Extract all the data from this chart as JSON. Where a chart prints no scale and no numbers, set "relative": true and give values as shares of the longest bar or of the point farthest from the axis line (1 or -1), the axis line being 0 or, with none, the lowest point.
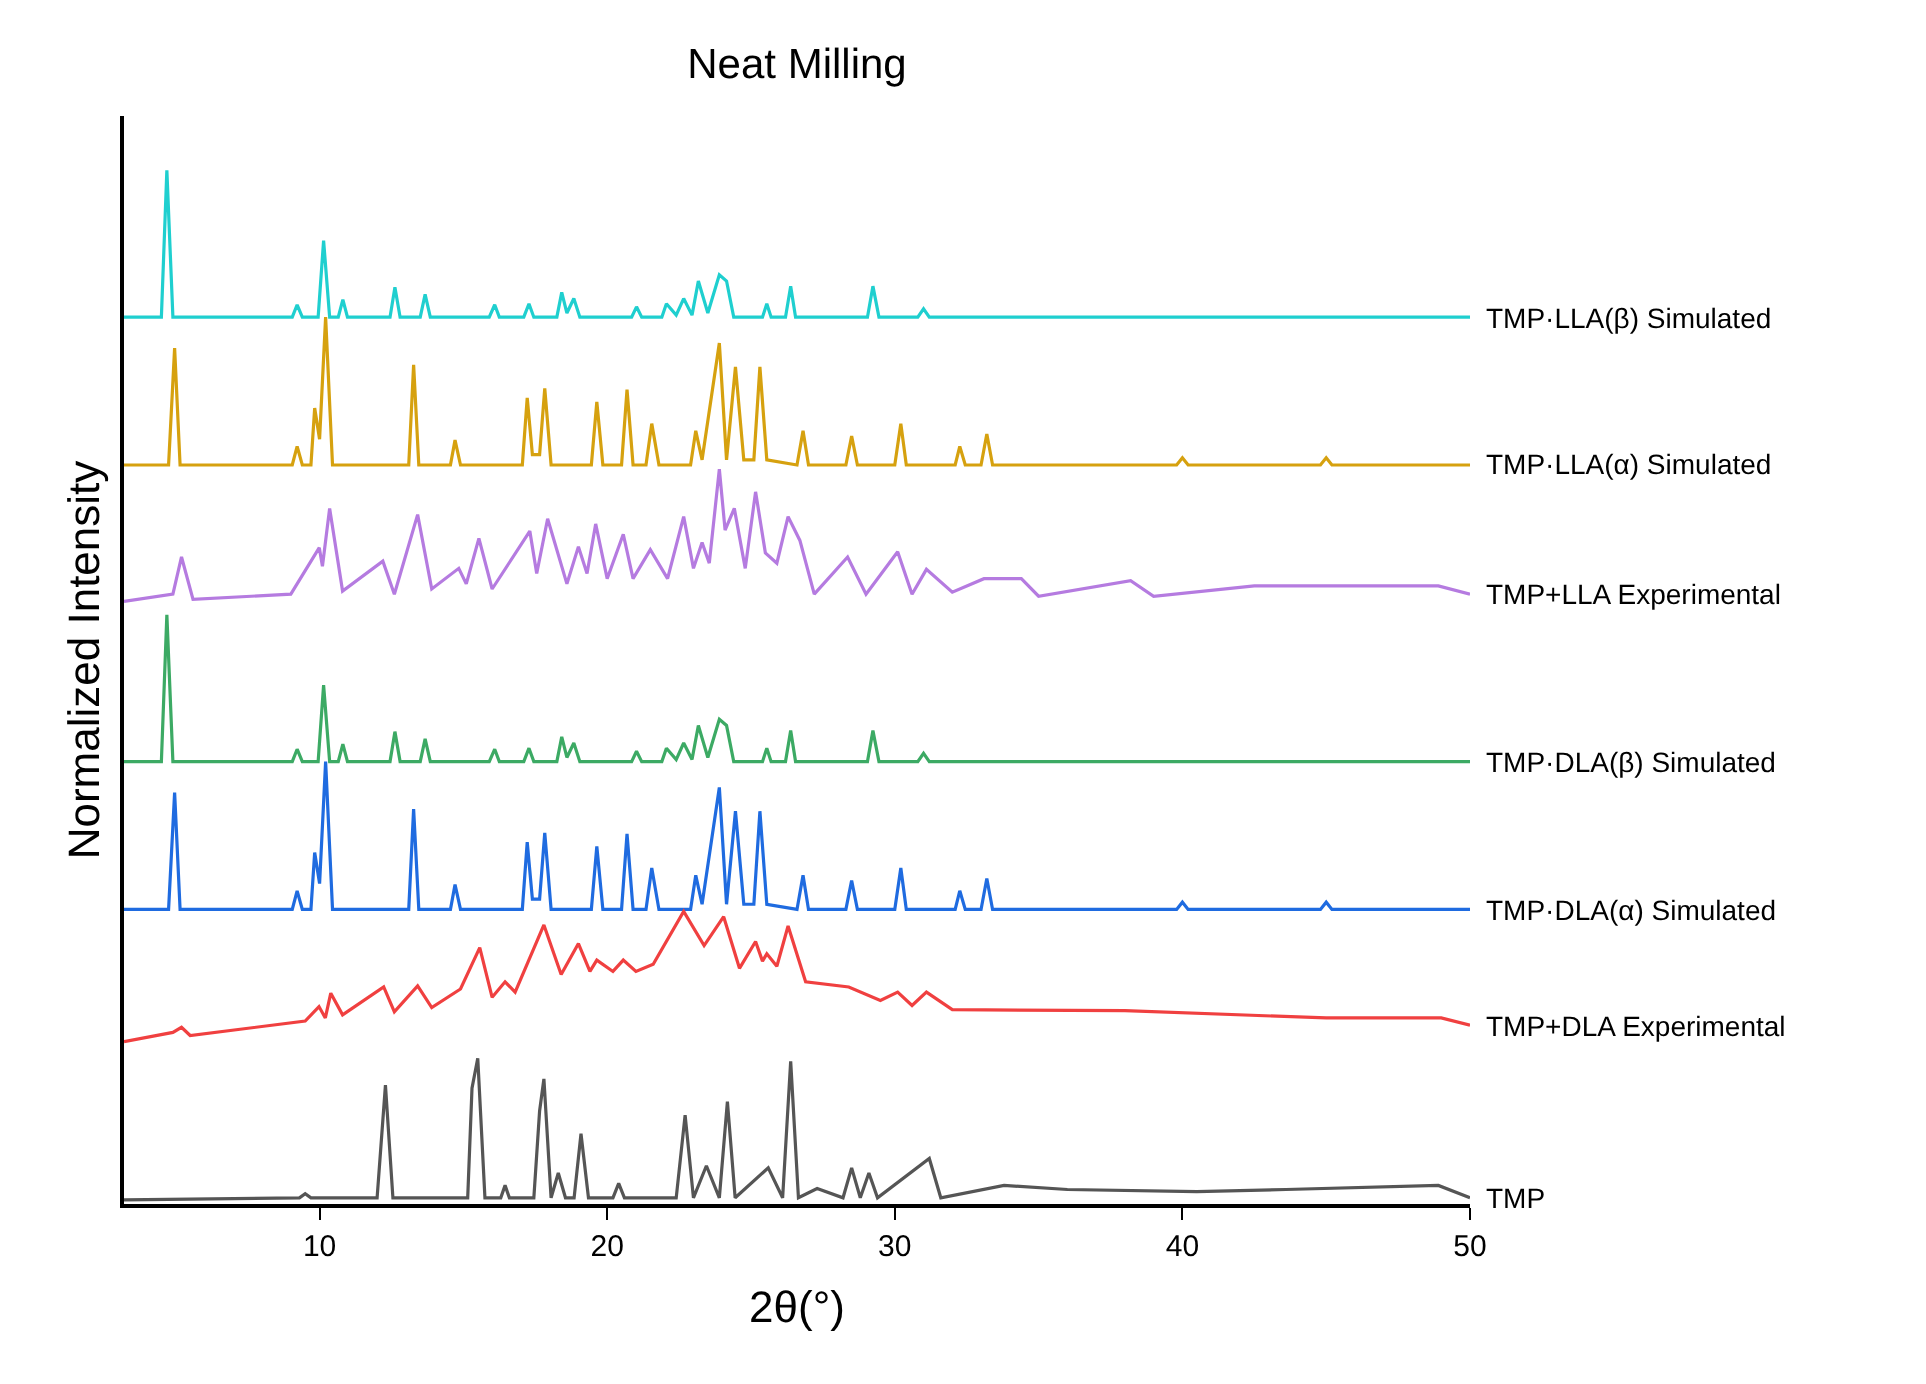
{
  "chart_data": {
    "type": "line",
    "title": "Neat Milling",
    "xlabel": "2θ(°)",
    "ylabel": "Normalized Intensity",
    "relative": true,
    "xlim": [
      3.2,
      50
    ],
    "xticks": [
      10,
      20,
      30,
      40,
      50
    ],
    "legend": false,
    "series": [
      {
        "name": "TMP·LLA(β) Simulated",
        "color": "#1fcfcf",
        "x": [
          3.2,
          4.5,
          4.69,
          4.9,
          9.05,
          9.22,
          9.4,
          9.95,
          10.14,
          10.35,
          10.65,
          10.81,
          10.97,
          12.45,
          12.62,
          12.8,
          13.5,
          13.67,
          13.85,
          15.9,
          16.09,
          16.25,
          17.1,
          17.28,
          17.45,
          18.25,
          18.42,
          18.6,
          18.84,
          19.05,
          20.85,
          21.02,
          21.2,
          21.9,
          22.06,
          22.4,
          22.66,
          22.95,
          23.17,
          23.5,
          23.9,
          24.15,
          24.4,
          25.4,
          25.55,
          25.7,
          26.2,
          26.38,
          26.55,
          29.05,
          29.24,
          29.45,
          30.8,
          31.0,
          31.2,
          50
        ],
        "values": [
          0.858,
          0.858,
          1.0,
          0.858,
          0.858,
          0.87,
          0.858,
          0.858,
          0.932,
          0.858,
          0.858,
          0.875,
          0.858,
          0.858,
          0.887,
          0.858,
          0.858,
          0.88,
          0.858,
          0.858,
          0.87,
          0.858,
          0.858,
          0.871,
          0.858,
          0.858,
          0.882,
          0.862,
          0.876,
          0.858,
          0.858,
          0.868,
          0.858,
          0.858,
          0.871,
          0.86,
          0.876,
          0.86,
          0.893,
          0.862,
          0.899,
          0.893,
          0.858,
          0.858,
          0.871,
          0.858,
          0.858,
          0.888,
          0.858,
          0.858,
          0.888,
          0.858,
          0.858,
          0.866,
          0.858,
          0.858
        ]
      },
      {
        "name": "TMP·LLA(α) Simulated",
        "color": "#d6a10f",
        "x": [
          3.2,
          4.75,
          4.96,
          5.15,
          9.05,
          9.22,
          9.4,
          9.7,
          9.83,
          10.0,
          10.21,
          10.45,
          13.1,
          13.27,
          13.45,
          14.55,
          14.71,
          14.9,
          17.05,
          17.22,
          17.4,
          17.65,
          17.83,
          18.05,
          19.45,
          19.64,
          19.85,
          20.5,
          20.69,
          20.9,
          21.35,
          21.55,
          21.8,
          22.9,
          23.08,
          23.3,
          23.9,
          24.15,
          24.46,
          24.75,
          25.1,
          25.31,
          25.55,
          26.6,
          26.81,
          27.0,
          28.3,
          28.5,
          28.7,
          30.0,
          30.21,
          30.4,
          32.1,
          32.26,
          32.45,
          33.0,
          33.2,
          33.4,
          39.8,
          40.0,
          40.2,
          44.8,
          45.0,
          45.2,
          50
        ],
        "values": [
          0.715,
          0.715,
          0.828,
          0.715,
          0.715,
          0.733,
          0.715,
          0.715,
          0.77,
          0.74,
          0.858,
          0.715,
          0.715,
          0.812,
          0.715,
          0.715,
          0.739,
          0.715,
          0.715,
          0.78,
          0.725,
          0.725,
          0.789,
          0.715,
          0.715,
          0.776,
          0.715,
          0.715,
          0.788,
          0.715,
          0.715,
          0.755,
          0.715,
          0.715,
          0.748,
          0.72,
          0.833,
          0.72,
          0.81,
          0.72,
          0.72,
          0.81,
          0.72,
          0.715,
          0.748,
          0.715,
          0.715,
          0.743,
          0.715,
          0.715,
          0.755,
          0.715,
          0.715,
          0.733,
          0.715,
          0.715,
          0.745,
          0.715,
          0.715,
          0.722,
          0.715,
          0.715,
          0.722,
          0.715,
          0.715
        ]
      },
      {
        "name": "TMP+LLA Experimental",
        "color": "#b57be0",
        "x": [
          3.2,
          4.9,
          5.2,
          5.6,
          9.0,
          9.99,
          10.1,
          10.35,
          10.8,
          12.2,
          12.6,
          13.41,
          13.9,
          14.84,
          15.1,
          15.54,
          16.0,
          17.31,
          17.55,
          17.93,
          18.6,
          19.0,
          19.3,
          19.6,
          20.0,
          20.56,
          20.9,
          21.5,
          22.1,
          22.66,
          23.0,
          23.3,
          23.55,
          23.9,
          24.1,
          24.42,
          24.8,
          25.16,
          25.5,
          25.9,
          26.29,
          26.7,
          27.2,
          28.36,
          29.0,
          30.1,
          30.6,
          31.1,
          32.0,
          33.1,
          34.4,
          35.0,
          38.2,
          39.0,
          42.5,
          48.9,
          50
        ],
        "values": [
          0.583,
          0.59,
          0.626,
          0.585,
          0.59,
          0.635,
          0.617,
          0.673,
          0.593,
          0.622,
          0.59,
          0.667,
          0.595,
          0.615,
          0.6,
          0.644,
          0.595,
          0.651,
          0.61,
          0.663,
          0.6,
          0.636,
          0.61,
          0.658,
          0.605,
          0.648,
          0.605,
          0.633,
          0.605,
          0.665,
          0.615,
          0.64,
          0.62,
          0.711,
          0.652,
          0.673,
          0.615,
          0.689,
          0.63,
          0.62,
          0.665,
          0.642,
          0.59,
          0.626,
          0.59,
          0.631,
          0.59,
          0.614,
          0.592,
          0.605,
          0.605,
          0.588,
          0.603,
          0.588,
          0.598,
          0.598,
          0.59
        ]
      },
      {
        "name": "TMP·DLA(β) Simulated",
        "color": "#3caa64",
        "x": [
          3.2,
          4.5,
          4.69,
          4.9,
          9.05,
          9.22,
          9.4,
          9.95,
          10.14,
          10.35,
          10.65,
          10.81,
          10.97,
          12.45,
          12.62,
          12.8,
          13.5,
          13.67,
          13.85,
          15.9,
          16.09,
          16.25,
          17.1,
          17.28,
          17.45,
          18.25,
          18.42,
          18.6,
          18.84,
          19.05,
          20.85,
          21.02,
          21.2,
          21.9,
          22.06,
          22.4,
          22.66,
          22.95,
          23.17,
          23.5,
          23.9,
          24.15,
          24.4,
          25.4,
          25.55,
          25.7,
          26.2,
          26.38,
          26.55,
          29.05,
          29.24,
          29.45,
          30.8,
          31.0,
          31.2,
          50
        ],
        "values": [
          0.428,
          0.428,
          0.57,
          0.428,
          0.428,
          0.44,
          0.428,
          0.428,
          0.502,
          0.428,
          0.428,
          0.445,
          0.428,
          0.428,
          0.457,
          0.428,
          0.428,
          0.45,
          0.428,
          0.428,
          0.44,
          0.428,
          0.428,
          0.441,
          0.428,
          0.428,
          0.452,
          0.432,
          0.446,
          0.428,
          0.428,
          0.438,
          0.428,
          0.428,
          0.441,
          0.43,
          0.446,
          0.43,
          0.463,
          0.432,
          0.469,
          0.463,
          0.428,
          0.428,
          0.441,
          0.428,
          0.428,
          0.458,
          0.428,
          0.428,
          0.458,
          0.428,
          0.428,
          0.436,
          0.428,
          0.428
        ]
      },
      {
        "name": "TMP·DLA(α) Simulated",
        "color": "#1f6be0",
        "x": [
          3.2,
          4.75,
          4.96,
          5.15,
          9.05,
          9.22,
          9.4,
          9.7,
          9.83,
          10.0,
          10.21,
          10.45,
          13.1,
          13.27,
          13.45,
          14.55,
          14.71,
          14.9,
          17.05,
          17.22,
          17.4,
          17.65,
          17.83,
          18.05,
          19.45,
          19.64,
          19.85,
          20.5,
          20.69,
          20.9,
          21.35,
          21.55,
          21.8,
          22.9,
          23.08,
          23.3,
          23.9,
          24.15,
          24.46,
          24.75,
          25.1,
          25.31,
          25.55,
          26.6,
          26.81,
          27.0,
          28.3,
          28.5,
          28.7,
          30.0,
          30.21,
          30.4,
          32.1,
          32.26,
          32.45,
          33.0,
          33.2,
          33.4,
          39.8,
          40.0,
          40.2,
          44.8,
          45.0,
          45.2,
          50
        ],
        "values": [
          0.285,
          0.285,
          0.398,
          0.285,
          0.285,
          0.303,
          0.285,
          0.285,
          0.34,
          0.31,
          0.428,
          0.285,
          0.285,
          0.382,
          0.285,
          0.285,
          0.309,
          0.285,
          0.285,
          0.35,
          0.295,
          0.295,
          0.359,
          0.285,
          0.285,
          0.346,
          0.285,
          0.285,
          0.358,
          0.285,
          0.285,
          0.325,
          0.285,
          0.285,
          0.318,
          0.29,
          0.403,
          0.29,
          0.38,
          0.29,
          0.29,
          0.38,
          0.29,
          0.285,
          0.318,
          0.285,
          0.285,
          0.313,
          0.285,
          0.285,
          0.325,
          0.285,
          0.285,
          0.303,
          0.285,
          0.285,
          0.315,
          0.285,
          0.285,
          0.292,
          0.285,
          0.285,
          0.292,
          0.285,
          0.285
        ]
      },
      {
        "name": "TMP+DLA Experimental",
        "color": "#f04040",
        "x": [
          3.2,
          4.9,
          5.2,
          5.5,
          9.5,
          9.98,
          10.2,
          10.39,
          10.8,
          12.23,
          12.6,
          13.41,
          13.9,
          14.9,
          15.57,
          16.0,
          16.45,
          16.8,
          17.8,
          18.4,
          19.0,
          19.4,
          19.64,
          20.2,
          20.56,
          21.0,
          21.6,
          22.66,
          23.37,
          24.05,
          24.6,
          25.16,
          25.4,
          25.55,
          25.9,
          26.29,
          26.9,
          28.4,
          29.5,
          30.1,
          30.6,
          31.1,
          32.0,
          38.0,
          45.0,
          49.0,
          50
        ],
        "values": [
          0.157,
          0.166,
          0.171,
          0.163,
          0.177,
          0.191,
          0.18,
          0.204,
          0.183,
          0.21,
          0.186,
          0.211,
          0.19,
          0.208,
          0.248,
          0.2,
          0.215,
          0.205,
          0.27,
          0.222,
          0.252,
          0.225,
          0.236,
          0.225,
          0.236,
          0.225,
          0.232,
          0.283,
          0.25,
          0.278,
          0.228,
          0.254,
          0.235,
          0.242,
          0.23,
          0.269,
          0.215,
          0.21,
          0.197,
          0.205,
          0.192,
          0.205,
          0.188,
          0.187,
          0.18,
          0.18,
          0.173
        ]
      },
      {
        "name": "TMP",
        "color": "#555555",
        "x": [
          3.2,
          9.3,
          9.5,
          9.7,
          12.0,
          12.29,
          12.55,
          15.15,
          15.3,
          15.5,
          15.75,
          16.3,
          16.45,
          16.6,
          17.45,
          17.65,
          17.8,
          18.05,
          18.3,
          18.55,
          18.85,
          19.09,
          19.35,
          20.2,
          20.4,
          20.6,
          22.4,
          22.71,
          23.0,
          23.45,
          23.9,
          24.18,
          24.45,
          25.6,
          26.1,
          26.38,
          26.65,
          27.3,
          28.2,
          28.5,
          28.8,
          29.1,
          29.4,
          31.2,
          31.6,
          33.8,
          36.0,
          40.5,
          43.6,
          48.9,
          50
        ],
        "values": [
          0.004,
          0.006,
          0.01,
          0.006,
          0.006,
          0.115,
          0.006,
          0.006,
          0.112,
          0.141,
          0.006,
          0.006,
          0.018,
          0.006,
          0.006,
          0.09,
          0.121,
          0.006,
          0.03,
          0.006,
          0.006,
          0.068,
          0.006,
          0.006,
          0.02,
          0.006,
          0.006,
          0.086,
          0.006,
          0.037,
          0.006,
          0.099,
          0.006,
          0.035,
          0.006,
          0.138,
          0.006,
          0.015,
          0.006,
          0.035,
          0.006,
          0.03,
          0.006,
          0.044,
          0.006,
          0.018,
          0.014,
          0.012,
          0.014,
          0.018,
          0.006
        ]
      }
    ]
  }
}
